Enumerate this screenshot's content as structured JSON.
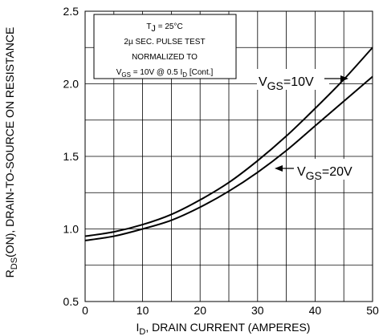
{
  "chart_data": {
    "type": "line",
    "xlabel": {
      "main": "I",
      "sub": "D",
      "rest": ", DRAIN CURRENT (AMPERES)"
    },
    "ylabel": {
      "main": "R",
      "sub": "DS",
      "rest": "(ON), DRAIN-TO-SOURCE ON RESISTANCE"
    },
    "xlim": [
      0,
      50
    ],
    "ylim": [
      0.5,
      2.5
    ],
    "x_ticks": [
      "0",
      "10",
      "20",
      "30",
      "40",
      "50"
    ],
    "y_ticks": [
      "0.5",
      "1.0",
      "1.5",
      "2.0",
      "2.5"
    ],
    "grid": true,
    "annotation": {
      "line1": {
        "main": "T",
        "sub": "J",
        "rest": " = 25°C"
      },
      "line2": "2µ SEC. PULSE TEST",
      "line3": "NORMALIZED TO",
      "line4": {
        "a": "V",
        "asub": "GS",
        "b": " = 10V  @  0.5  I",
        "bsub": "D",
        "c": " [Cont.]"
      }
    },
    "series": [
      {
        "label": {
          "main": "V",
          "sub": "GS",
          "rest": "=10V"
        },
        "x": [
          0,
          5,
          10,
          15,
          20,
          25,
          30,
          35,
          40,
          45,
          50
        ],
        "y": [
          0.95,
          0.98,
          1.03,
          1.1,
          1.2,
          1.32,
          1.47,
          1.64,
          1.83,
          2.03,
          2.25
        ]
      },
      {
        "label": {
          "main": "V",
          "sub": "GS",
          "rest": "=20V"
        },
        "x": [
          0,
          5,
          10,
          15,
          20,
          25,
          30,
          35,
          40,
          45,
          50
        ],
        "y": [
          0.92,
          0.95,
          1.0,
          1.06,
          1.15,
          1.26,
          1.39,
          1.54,
          1.71,
          1.88,
          2.05
        ]
      }
    ]
  }
}
